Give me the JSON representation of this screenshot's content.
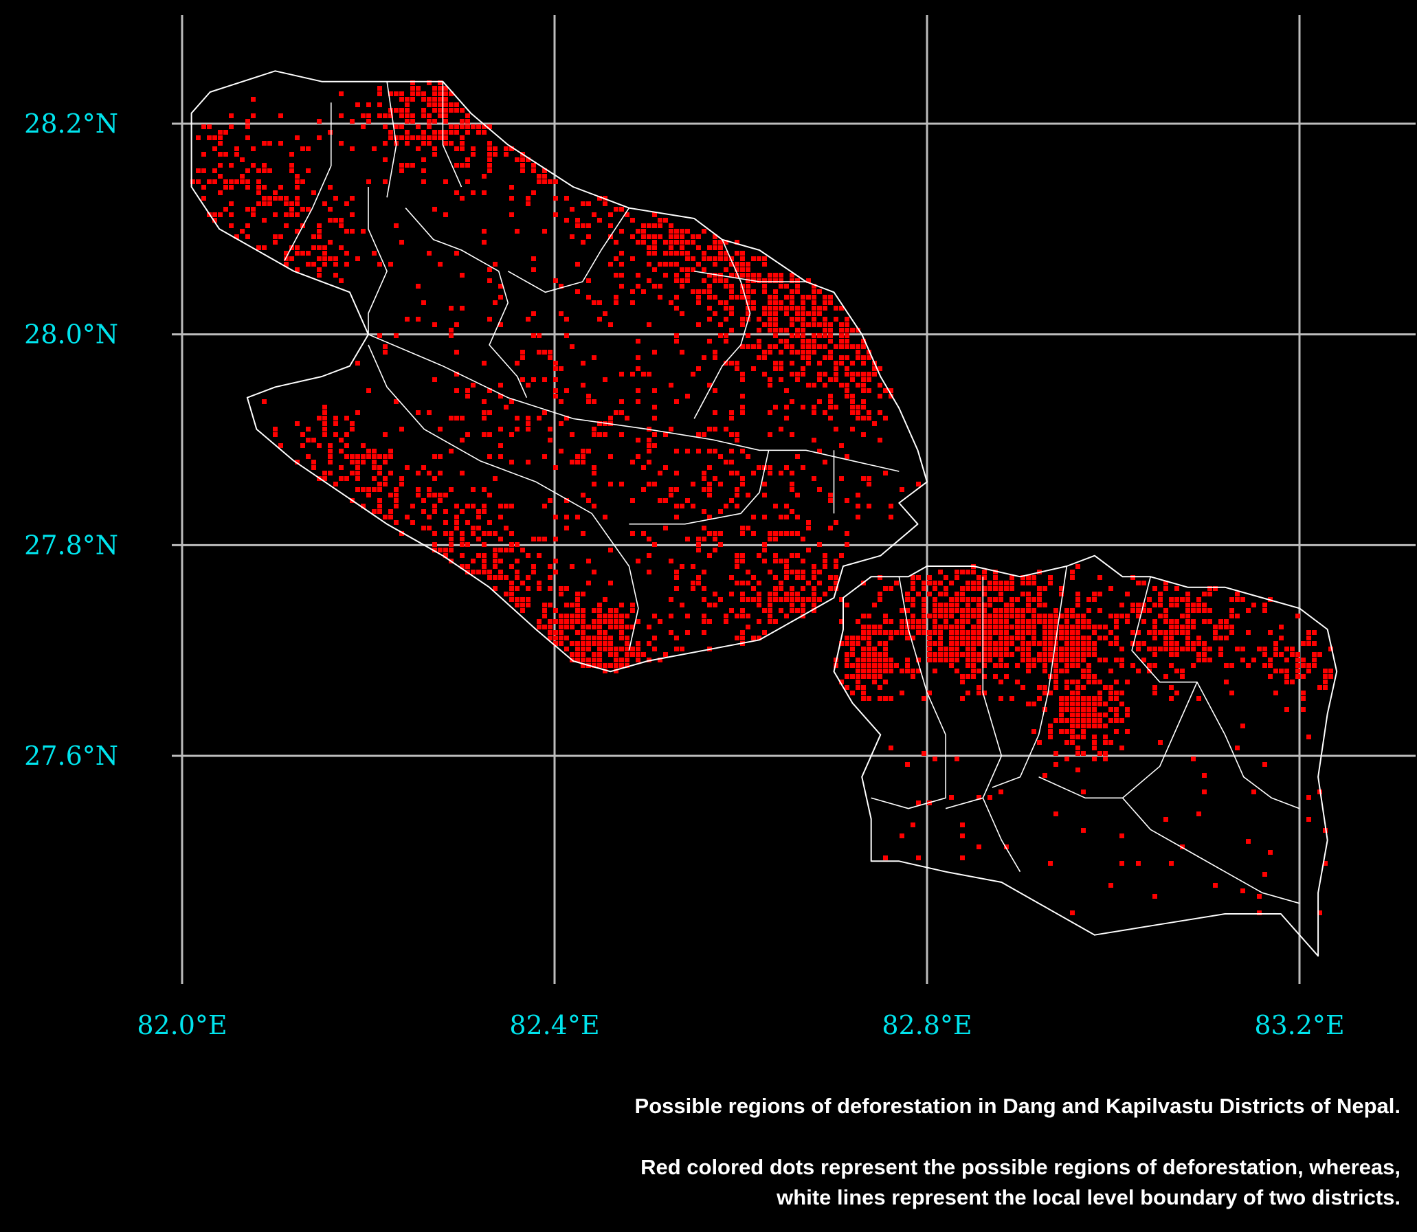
{
  "map": {
    "kind": "choropleth-style dot map",
    "background_color": "#000000",
    "grid_color": "#bdbdbd",
    "boundary_color": "#ffffff",
    "dot_color": "#ff0000",
    "label_color": "#00e5ee",
    "x_range": [
      81.95,
      83.34
    ],
    "y_range": [
      27.37,
      28.31
    ],
    "x_ticks": [
      {
        "value": 82.0,
        "label": "82.0°E"
      },
      {
        "value": 82.4,
        "label": "82.4°E"
      },
      {
        "value": 82.8,
        "label": "82.8°E"
      },
      {
        "value": 83.2,
        "label": "83.2°E"
      }
    ],
    "y_ticks": [
      {
        "value": 28.2,
        "label": "28.2°N"
      },
      {
        "value": 28.0,
        "label": "28.0°N"
      },
      {
        "value": 27.8,
        "label": "27.8°N"
      },
      {
        "value": 27.6,
        "label": "27.6°N"
      }
    ],
    "grid": true
  },
  "districts": [
    {
      "name": "Dang",
      "outline": [
        [
          82.01,
          28.21
        ],
        [
          82.03,
          28.23
        ],
        [
          82.1,
          28.25
        ],
        [
          82.15,
          28.24
        ],
        [
          82.22,
          28.24
        ],
        [
          82.28,
          28.24
        ],
        [
          82.31,
          28.21
        ],
        [
          82.35,
          28.18
        ],
        [
          82.42,
          28.14
        ],
        [
          82.48,
          28.12
        ],
        [
          82.55,
          28.11
        ],
        [
          82.58,
          28.09
        ],
        [
          82.62,
          28.08
        ],
        [
          82.67,
          28.05
        ],
        [
          82.7,
          28.04
        ],
        [
          82.73,
          28.0
        ],
        [
          82.75,
          27.96
        ],
        [
          82.77,
          27.93
        ],
        [
          82.79,
          27.89
        ],
        [
          82.8,
          27.86
        ],
        [
          82.77,
          27.84
        ],
        [
          82.79,
          27.82
        ],
        [
          82.75,
          27.79
        ],
        [
          82.71,
          27.78
        ],
        [
          82.7,
          27.75
        ],
        [
          82.66,
          27.73
        ],
        [
          82.62,
          27.71
        ],
        [
          82.56,
          27.7
        ],
        [
          82.5,
          27.69
        ],
        [
          82.46,
          27.68
        ],
        [
          82.42,
          27.69
        ],
        [
          82.38,
          27.72
        ],
        [
          82.33,
          27.76
        ],
        [
          82.28,
          27.79
        ],
        [
          82.22,
          27.82
        ],
        [
          82.17,
          27.85
        ],
        [
          82.12,
          27.88
        ],
        [
          82.08,
          27.91
        ],
        [
          82.07,
          27.94
        ],
        [
          82.1,
          27.95
        ],
        [
          82.15,
          27.96
        ],
        [
          82.18,
          27.97
        ],
        [
          82.2,
          28.0
        ],
        [
          82.18,
          28.04
        ],
        [
          82.12,
          28.06
        ],
        [
          82.08,
          28.08
        ],
        [
          82.04,
          28.1
        ],
        [
          82.01,
          28.14
        ],
        [
          82.01,
          28.21
        ]
      ],
      "internal_boundaries": [
        [
          [
            82.2,
            28.0
          ],
          [
            82.28,
            27.97
          ],
          [
            82.35,
            27.94
          ],
          [
            82.42,
            27.92
          ],
          [
            82.5,
            27.91
          ],
          [
            82.57,
            27.9
          ],
          [
            82.62,
            27.89
          ],
          [
            82.67,
            27.89
          ],
          [
            82.72,
            27.88
          ],
          [
            82.77,
            27.87
          ]
        ],
        [
          [
            82.16,
            28.22
          ],
          [
            82.16,
            28.16
          ],
          [
            82.14,
            28.12
          ],
          [
            82.11,
            28.07
          ]
        ],
        [
          [
            82.22,
            28.24
          ],
          [
            82.23,
            28.18
          ],
          [
            82.22,
            28.13
          ]
        ],
        [
          [
            82.28,
            28.24
          ],
          [
            82.28,
            28.18
          ],
          [
            82.3,
            28.14
          ]
        ],
        [
          [
            82.2,
            28.14
          ],
          [
            82.2,
            28.1
          ],
          [
            82.22,
            28.06
          ],
          [
            82.2,
            28.02
          ],
          [
            82.2,
            28.0
          ]
        ],
        [
          [
            82.24,
            28.12
          ],
          [
            82.27,
            28.09
          ],
          [
            82.3,
            28.08
          ],
          [
            82.34,
            28.06
          ],
          [
            82.35,
            28.03
          ],
          [
            82.33,
            27.99
          ],
          [
            82.36,
            27.96
          ],
          [
            82.37,
            27.94
          ]
        ],
        [
          [
            82.35,
            28.06
          ],
          [
            82.39,
            28.04
          ],
          [
            82.43,
            28.05
          ],
          [
            82.45,
            28.08
          ],
          [
            82.48,
            28.12
          ]
        ],
        [
          [
            82.58,
            28.09
          ],
          [
            82.6,
            28.05
          ],
          [
            82.61,
            28.02
          ],
          [
            82.6,
            27.99
          ],
          [
            82.58,
            27.97
          ],
          [
            82.55,
            27.92
          ]
        ],
        [
          [
            82.55,
            28.06
          ],
          [
            82.62,
            28.05
          ],
          [
            82.67,
            28.05
          ]
        ],
        [
          [
            82.2,
            27.99
          ],
          [
            82.22,
            27.95
          ],
          [
            82.26,
            27.91
          ],
          [
            82.32,
            27.88
          ],
          [
            82.38,
            27.86
          ],
          [
            82.44,
            27.83
          ],
          [
            82.48,
            27.78
          ],
          [
            82.49,
            27.74
          ],
          [
            82.48,
            27.7
          ]
        ],
        [
          [
            82.48,
            27.82
          ],
          [
            82.54,
            27.82
          ],
          [
            82.6,
            27.83
          ],
          [
            82.62,
            27.85
          ],
          [
            82.63,
            27.89
          ]
        ],
        [
          [
            82.7,
            27.83
          ],
          [
            82.7,
            27.86
          ],
          [
            82.7,
            27.89
          ]
        ]
      ]
    },
    {
      "name": "Kapilvastu",
      "outline": [
        [
          82.71,
          27.75
        ],
        [
          82.74,
          27.77
        ],
        [
          82.78,
          27.77
        ],
        [
          82.8,
          27.78
        ],
        [
          82.85,
          27.78
        ],
        [
          82.9,
          27.77
        ],
        [
          82.95,
          27.78
        ],
        [
          82.98,
          27.79
        ],
        [
          83.01,
          27.77
        ],
        [
          83.04,
          27.77
        ],
        [
          83.08,
          27.76
        ],
        [
          83.12,
          27.76
        ],
        [
          83.16,
          27.75
        ],
        [
          83.2,
          27.74
        ],
        [
          83.23,
          27.72
        ],
        [
          83.24,
          27.68
        ],
        [
          83.23,
          27.64
        ],
        [
          83.22,
          27.58
        ],
        [
          83.23,
          27.52
        ],
        [
          83.22,
          27.47
        ],
        [
          83.22,
          27.41
        ],
        [
          83.2,
          27.43
        ],
        [
          83.18,
          27.45
        ],
        [
          83.12,
          27.45
        ],
        [
          83.05,
          27.44
        ],
        [
          82.98,
          27.43
        ],
        [
          82.92,
          27.46
        ],
        [
          82.88,
          27.48
        ],
        [
          82.82,
          27.49
        ],
        [
          82.77,
          27.5
        ],
        [
          82.74,
          27.5
        ],
        [
          82.74,
          27.54
        ],
        [
          82.73,
          27.58
        ],
        [
          82.75,
          27.62
        ],
        [
          82.72,
          27.65
        ],
        [
          82.7,
          27.68
        ],
        [
          82.71,
          27.72
        ],
        [
          82.71,
          27.75
        ]
      ],
      "internal_boundaries": [
        [
          [
            82.77,
            27.77
          ],
          [
            82.78,
            27.72
          ],
          [
            82.8,
            27.66
          ],
          [
            82.82,
            27.62
          ],
          [
            82.82,
            27.56
          ],
          [
            82.78,
            27.55
          ],
          [
            82.74,
            27.56
          ]
        ],
        [
          [
            82.86,
            27.77
          ],
          [
            82.86,
            27.72
          ],
          [
            82.86,
            27.66
          ],
          [
            82.88,
            27.6
          ],
          [
            82.86,
            27.56
          ],
          [
            82.82,
            27.55
          ]
        ],
        [
          [
            82.95,
            27.78
          ],
          [
            82.94,
            27.72
          ],
          [
            82.93,
            27.66
          ],
          [
            82.92,
            27.62
          ],
          [
            82.9,
            27.58
          ],
          [
            82.87,
            27.57
          ]
        ],
        [
          [
            83.04,
            27.77
          ],
          [
            83.02,
            27.7
          ],
          [
            83.05,
            27.67
          ],
          [
            83.09,
            27.67
          ],
          [
            83.07,
            27.63
          ],
          [
            83.05,
            27.59
          ],
          [
            83.01,
            27.56
          ]
        ],
        [
          [
            83.09,
            27.67
          ],
          [
            83.12,
            27.62
          ],
          [
            83.14,
            27.58
          ],
          [
            83.17,
            27.56
          ],
          [
            83.2,
            27.55
          ]
        ],
        [
          [
            82.92,
            27.58
          ],
          [
            82.97,
            27.56
          ],
          [
            83.01,
            27.56
          ],
          [
            83.04,
            27.53
          ],
          [
            83.08,
            27.51
          ],
          [
            83.12,
            27.49
          ],
          [
            83.16,
            27.47
          ],
          [
            83.2,
            27.46
          ]
        ],
        [
          [
            82.86,
            27.56
          ],
          [
            82.88,
            27.52
          ],
          [
            82.9,
            27.49
          ]
        ]
      ]
    }
  ],
  "deforestation_hotspots": [
    {
      "lon": 82.27,
      "lat": 28.22,
      "spread": 0.035,
      "count": 260
    },
    {
      "lon": 82.37,
      "lat": 28.21,
      "spread": 0.045,
      "count": 260
    },
    {
      "lon": 82.47,
      "lat": 28.16,
      "spread": 0.04,
      "count": 140
    },
    {
      "lon": 82.52,
      "lat": 28.09,
      "spread": 0.045,
      "count": 220
    },
    {
      "lon": 82.62,
      "lat": 28.04,
      "spread": 0.04,
      "count": 230
    },
    {
      "lon": 82.68,
      "lat": 28.0,
      "spread": 0.04,
      "count": 200
    },
    {
      "lon": 82.73,
      "lat": 27.96,
      "spread": 0.03,
      "count": 110
    },
    {
      "lon": 82.05,
      "lat": 28.14,
      "spread": 0.04,
      "count": 120
    },
    {
      "lon": 82.12,
      "lat": 28.08,
      "spread": 0.04,
      "count": 110
    },
    {
      "lon": 82.18,
      "lat": 27.86,
      "spread": 0.05,
      "count": 220
    },
    {
      "lon": 82.3,
      "lat": 27.78,
      "spread": 0.045,
      "count": 240
    },
    {
      "lon": 82.42,
      "lat": 27.71,
      "spread": 0.035,
      "count": 260
    },
    {
      "lon": 82.47,
      "lat": 27.7,
      "spread": 0.02,
      "count": 110
    },
    {
      "lon": 82.36,
      "lat": 27.95,
      "spread": 0.06,
      "count": 90
    },
    {
      "lon": 82.5,
      "lat": 27.88,
      "spread": 0.06,
      "count": 90
    },
    {
      "lon": 82.63,
      "lat": 27.84,
      "spread": 0.06,
      "count": 90
    },
    {
      "lon": 82.67,
      "lat": 27.74,
      "spread": 0.035,
      "count": 180
    },
    {
      "lon": 82.58,
      "lat": 27.76,
      "spread": 0.05,
      "count": 80
    },
    {
      "lon": 82.74,
      "lat": 27.69,
      "spread": 0.02,
      "count": 150
    },
    {
      "lon": 82.85,
      "lat": 27.71,
      "spread": 0.025,
      "count": 320
    },
    {
      "lon": 82.82,
      "lat": 27.74,
      "spread": 0.035,
      "count": 200
    },
    {
      "lon": 82.9,
      "lat": 27.73,
      "spread": 0.035,
      "count": 250
    },
    {
      "lon": 82.95,
      "lat": 27.71,
      "spread": 0.02,
      "count": 180
    },
    {
      "lon": 82.97,
      "lat": 27.64,
      "spread": 0.02,
      "count": 200
    },
    {
      "lon": 83.05,
      "lat": 27.72,
      "spread": 0.04,
      "count": 150
    },
    {
      "lon": 83.11,
      "lat": 27.73,
      "spread": 0.04,
      "count": 110
    },
    {
      "lon": 83.2,
      "lat": 27.69,
      "spread": 0.02,
      "count": 60
    }
  ],
  "caption": {
    "title": "Possible regions of deforestation in Dang and Kapilvastu Districts of Nepal.",
    "line1": "Red colored dots represent the possible regions of deforestation, whereas,",
    "line2": "white lines represent the local level boundary of two districts."
  }
}
